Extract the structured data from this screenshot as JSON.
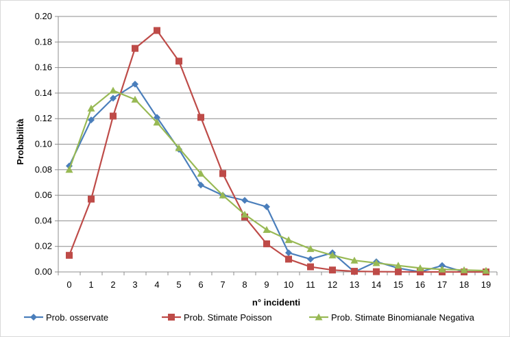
{
  "chart_data": {
    "type": "line",
    "title": "",
    "xlabel": "n° incidenti",
    "ylabel": "Probabilità",
    "ylim": [
      0,
      0.2
    ],
    "yticks": [
      "0.00",
      "0.02",
      "0.04",
      "0.06",
      "0.08",
      "0.10",
      "0.12",
      "0.14",
      "0.16",
      "0.18",
      "0.20"
    ],
    "x": [
      0,
      1,
      2,
      3,
      4,
      5,
      6,
      7,
      8,
      9,
      10,
      11,
      12,
      13,
      14,
      15,
      16,
      17,
      18,
      19
    ],
    "grid": true,
    "legend_position": "bottom",
    "series": [
      {
        "name": "Prob. osservate",
        "color": "#4a7ebb",
        "marker": "diamond",
        "values": [
          0.083,
          0.119,
          0.136,
          0.147,
          0.121,
          0.096,
          0.068,
          0.06,
          0.056,
          0.051,
          0.015,
          0.01,
          0.015,
          0.0,
          0.008,
          0.003,
          0.0,
          0.005,
          0.0,
          0.0
        ]
      },
      {
        "name": "Prob. Stimate Poisson",
        "color": "#be4b48",
        "marker": "square",
        "values": [
          0.013,
          0.057,
          0.122,
          0.175,
          0.189,
          0.165,
          0.121,
          0.077,
          0.043,
          0.022,
          0.01,
          0.004,
          0.0015,
          0.0005,
          0.0002,
          0.0001,
          0.0,
          0.0,
          0.0,
          0.0
        ]
      },
      {
        "name": "Prob. Stimate Binomianale Negativa",
        "color": "#98b954",
        "marker": "triangle",
        "values": [
          0.08,
          0.128,
          0.142,
          0.135,
          0.117,
          0.097,
          0.077,
          0.06,
          0.045,
          0.033,
          0.025,
          0.018,
          0.013,
          0.009,
          0.007,
          0.005,
          0.003,
          0.002,
          0.0015,
          0.001
        ]
      }
    ]
  }
}
